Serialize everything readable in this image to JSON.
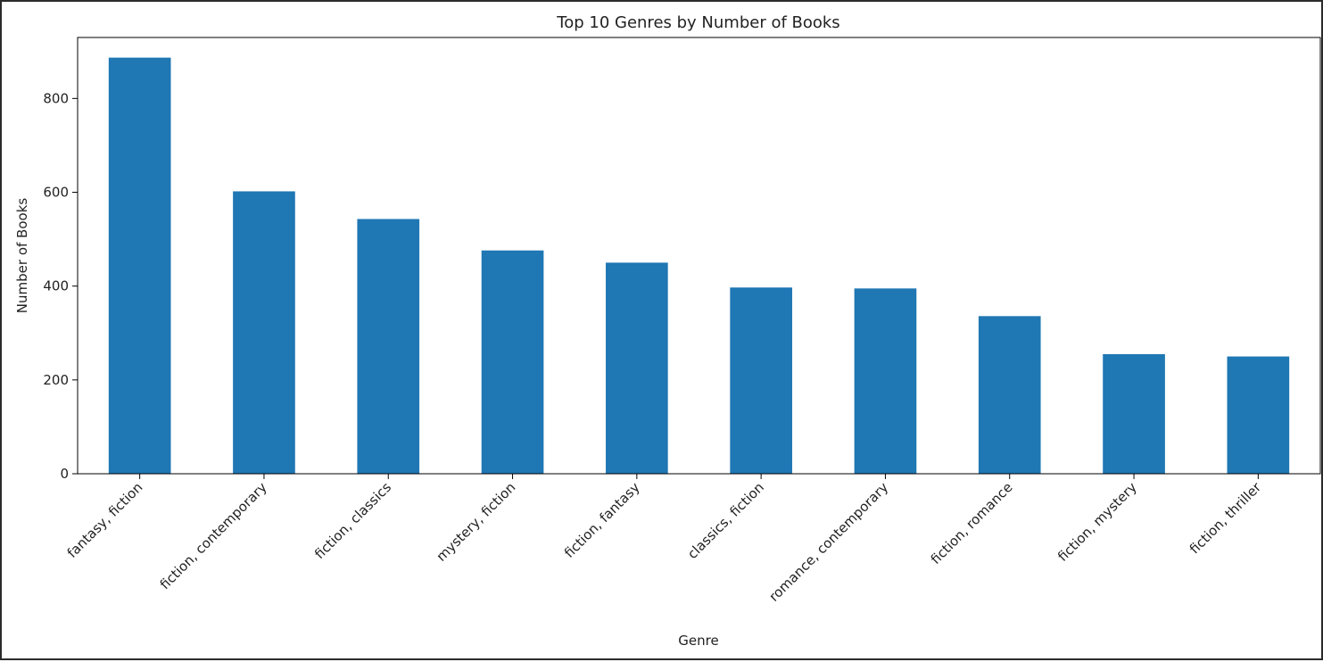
{
  "chart_data": {
    "type": "bar",
    "title": "Top 10 Genres by Number of Books",
    "xlabel": "Genre",
    "ylabel": "Number of Books",
    "categories": [
      "fantasy, fiction",
      "fiction, contemporary",
      "fiction, classics",
      "mystery, fiction",
      "fiction, fantasy",
      "classics, fiction",
      "romance, contemporary",
      "fiction, romance",
      "fiction, mystery",
      "fiction, thriller"
    ],
    "values": [
      887,
      602,
      543,
      476,
      450,
      397,
      395,
      336,
      255,
      250
    ],
    "ylim": [
      0,
      930
    ],
    "yticks": [
      0,
      200,
      400,
      600,
      800
    ],
    "bar_color": "#1f77b4",
    "grid": false,
    "legend": "none"
  }
}
